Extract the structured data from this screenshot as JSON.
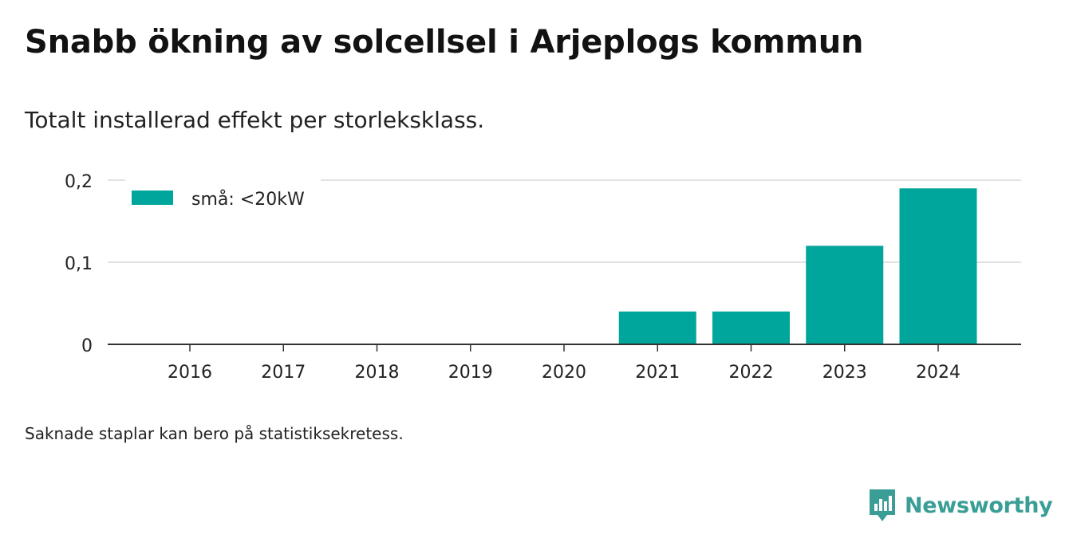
{
  "title": "Snabb ökning av solcellsel i Arjeplogs kommun",
  "subtitle": "Totalt installerad effekt per storleksklass.",
  "footnote": "Saknade staplar kan bero på statistiksekretess.",
  "brand": {
    "name": "Newsworthy",
    "icon": "newsworthy-logo-icon",
    "color": "#3a9e96"
  },
  "chart_data": {
    "type": "bar",
    "categories": [
      "2016",
      "2017",
      "2018",
      "2019",
      "2020",
      "2021",
      "2022",
      "2023",
      "2024"
    ],
    "series": [
      {
        "name": "små: <20kW",
        "color": "#00a59b",
        "values": [
          0,
          0,
          0,
          0,
          0,
          0.04,
          0.04,
          0.12,
          0.19
        ]
      }
    ],
    "ylim": [
      0,
      0.2
    ],
    "yticks": [
      0,
      0.1,
      0.2
    ],
    "ytick_labels": [
      "0",
      "0,1",
      "0,2"
    ],
    "grid": true,
    "legend": "top-left",
    "xlabel": "",
    "ylabel": ""
  }
}
